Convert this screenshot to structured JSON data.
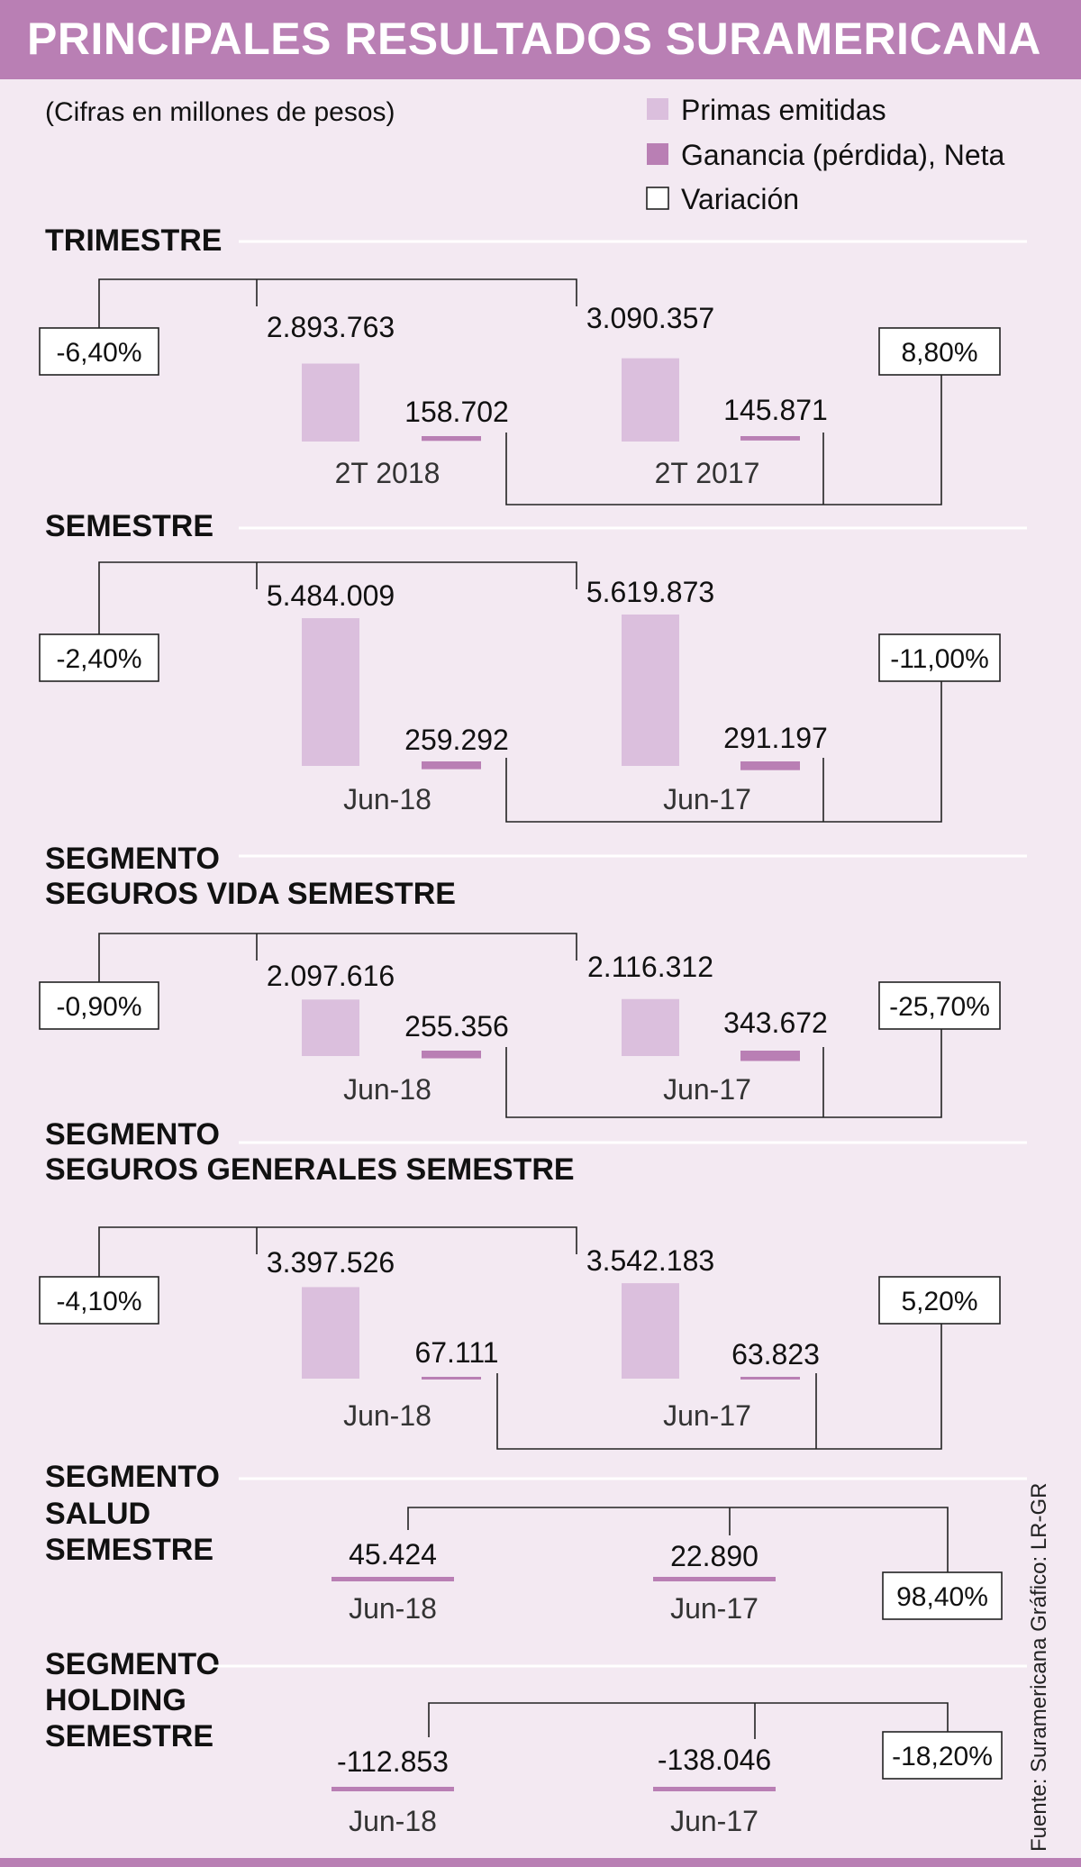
{
  "title": "PRINCIPALES RESULTADOS SURAMERICANA",
  "subtitle": "(Cifras en millones de pesos)",
  "source": "Fuente: Suramericana   Gráfico: LR-GR",
  "colors": {
    "title_bg": "#b97fb4",
    "background": "#f3e9f2",
    "primas": "#dbbfdd",
    "ganancia": "#b97fb4",
    "variacion": "#ffffff"
  },
  "legend": [
    {
      "label": "Primas emitidas",
      "swatch": "primas"
    },
    {
      "label": "Ganancia (pérdida), Neta",
      "swatch": "ganancia"
    },
    {
      "label": "Variación",
      "swatch": "variacion"
    }
  ],
  "chart_data": [
    {
      "type": "bar",
      "section": "TRIMESTRE",
      "title_lines": [
        "TRIMESTRE"
      ],
      "periods": [
        {
          "label": "2T 2018",
          "primas": 2893763,
          "primas_label": "2.893.763",
          "ganancia": 158702,
          "ganancia_label": "158.702"
        },
        {
          "label": "2T 2017",
          "primas": 3090357,
          "primas_label": "3.090.357",
          "ganancia": 145871,
          "ganancia_label": "145.871"
        }
      ],
      "variacion_primas": "-6,40%",
      "variacion_ganancia": "8,80%"
    },
    {
      "type": "bar",
      "section": "SEMESTRE",
      "title_lines": [
        "SEMESTRE"
      ],
      "periods": [
        {
          "label": "Jun-18",
          "primas": 5484009,
          "primas_label": "5.484.009",
          "ganancia": 259292,
          "ganancia_label": "259.292"
        },
        {
          "label": "Jun-17",
          "primas": 5619873,
          "primas_label": "5.619.873",
          "ganancia": 291197,
          "ganancia_label": "291.197"
        }
      ],
      "variacion_primas": "-2,40%",
      "variacion_ganancia": "-11,00%"
    },
    {
      "type": "bar",
      "section": "SEGMENTO SEGUROS VIDA SEMESTRE",
      "title_lines": [
        "SEGMENTO",
        "SEGUROS VIDA SEMESTRE"
      ],
      "periods": [
        {
          "label": "Jun-18",
          "primas": 2097616,
          "primas_label": "2.097.616",
          "ganancia": 255356,
          "ganancia_label": "255.356"
        },
        {
          "label": "Jun-17",
          "primas": 2116312,
          "primas_label": "2.116.312",
          "ganancia": 343672,
          "ganancia_label": "343.672"
        }
      ],
      "variacion_primas": "-0,90%",
      "variacion_ganancia": "-25,70%"
    },
    {
      "type": "bar",
      "section": "SEGMENTO SEGUROS GENERALES SEMESTRE",
      "title_lines": [
        "SEGMENTO",
        "SEGUROS GENERALES SEMESTRE"
      ],
      "periods": [
        {
          "label": "Jun-18",
          "primas": 3397526,
          "primas_label": "3.397.526",
          "ganancia": 67111,
          "ganancia_label": "67.111"
        },
        {
          "label": "Jun-17",
          "primas": 3542183,
          "primas_label": "3.542.183",
          "ganancia": 63823,
          "ganancia_label": "63.823"
        }
      ],
      "variacion_primas": "-4,10%",
      "variacion_ganancia": "5,20%"
    },
    {
      "type": "bar",
      "section": "SEGMENTO SALUD SEMESTRE",
      "title_lines": [
        "SEGMENTO",
        "SALUD",
        "SEMESTRE"
      ],
      "periods": [
        {
          "label": "Jun-18",
          "ganancia": 45424,
          "ganancia_label": "45.424"
        },
        {
          "label": "Jun-17",
          "ganancia": 22890,
          "ganancia_label": "22.890"
        }
      ],
      "variacion_ganancia": "98,40%"
    },
    {
      "type": "bar",
      "section": "SEGMENTO HOLDING SEMESTRE",
      "title_lines": [
        "SEGMENTO",
        "HOLDING",
        "SEMESTRE"
      ],
      "periods": [
        {
          "label": "Jun-18",
          "ganancia": -112853,
          "ganancia_label": "-112.853"
        },
        {
          "label": "Jun-17",
          "ganancia": -138046,
          "ganancia_label": "-138.046"
        }
      ],
      "variacion_ganancia": "-18,20%"
    }
  ]
}
